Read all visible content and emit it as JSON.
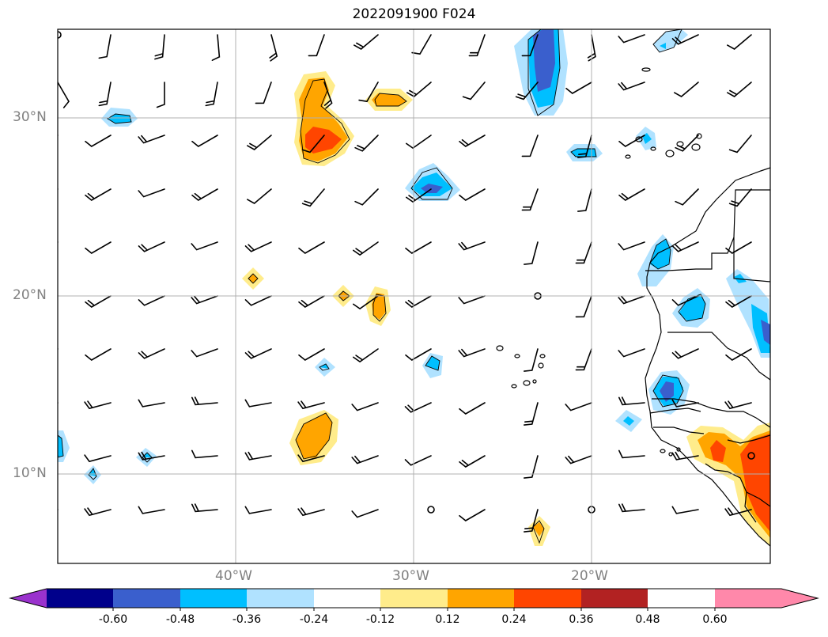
{
  "title": "2022091900 F024",
  "lat_labels": [
    "30°N",
    "20°N",
    "10°N"
  ],
  "lon_labels": [
    "40°W",
    "30°W",
    "20°W"
  ],
  "colorbar": {
    "ticks": [
      "-0.60",
      "-0.48",
      "-0.36",
      "-0.24",
      "-0.12",
      "0.12",
      "0.24",
      "0.36",
      "0.48",
      "0.60"
    ],
    "colors": [
      "#9a32cd",
      "#00008b",
      "#3a5fcd",
      "#00bfff",
      "#b0e2ff",
      "#ffffff",
      "#ffec8b",
      "#ffa500",
      "#ff4500",
      "#b22222",
      "#ff88aa"
    ]
  }
}
